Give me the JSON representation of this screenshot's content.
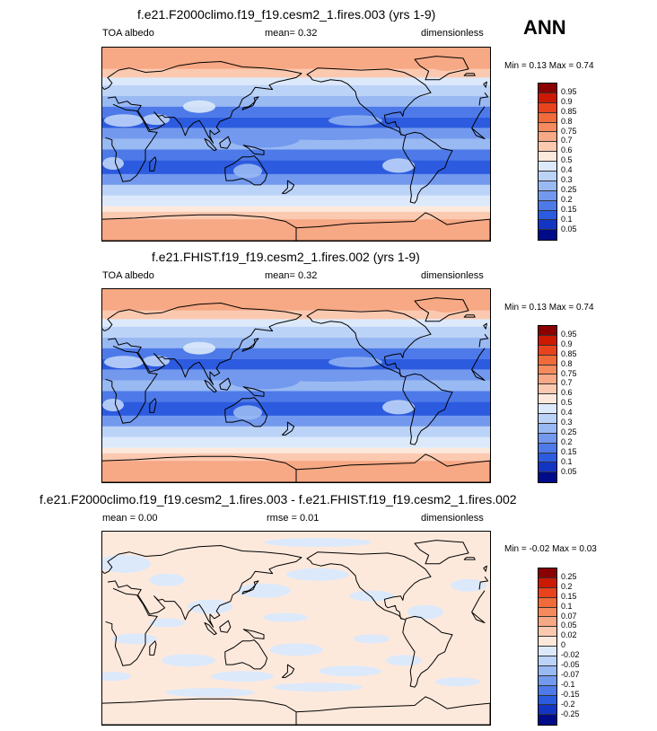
{
  "season": "ANN",
  "panels": [
    {
      "title": "f.e21.F2000climo.f19_f19.cesm2_1.fires.003 (yrs 1-9)",
      "left_label": "TOA albedo",
      "center_label": "mean=   0.32",
      "right_label": "dimensionless",
      "minmax": "Min =   0.13 Max =   0.74"
    },
    {
      "title": "f.e21.FHIST.f19_f19.cesm2_1.fires.002 (yrs 1-9)",
      "left_label": "TOA albedo",
      "center_label": "mean=   0.32",
      "right_label": "dimensionless",
      "minmax": "Min =   0.13 Max =   0.74"
    },
    {
      "title": "f.e21.F2000climo.f19_f19.cesm2_1.fires.003 - f.e21.FHIST.f19_f19.cesm2_1.fires.002",
      "left_label": "mean =   0.00",
      "center_label": "rmse =   0.01",
      "right_label": "dimensionless",
      "minmax": "Min =  -0.02 Max =   0.03"
    }
  ],
  "chart_data": [
    {
      "type": "heatmap",
      "title": "f.e21.F2000climo.f19_f19.cesm2_1.fires.003 (yrs 1-9)",
      "variable": "TOA albedo",
      "units": "dimensionless",
      "mean": 0.32,
      "min": 0.13,
      "max": 0.74,
      "colorbar_levels": [
        "0.95",
        "0.9",
        "0.85",
        "0.8",
        "0.75",
        "0.7",
        "0.6",
        "0.5",
        "0.4",
        "0.3",
        "0.25",
        "0.2",
        "0.15",
        "0.1",
        "0.05"
      ],
      "colorbar_colors": [
        "#8b0000",
        "#cc1a00",
        "#e8431c",
        "#f06a3a",
        "#f58a5c",
        "#f7a884",
        "#fbc9b0",
        "#fde9dc",
        "#dce9fb",
        "#bcd3f8",
        "#99b9f3",
        "#7399ee",
        "#4d7ae8",
        "#2c5bdf",
        "#1335c4",
        "#000b8a"
      ]
    },
    {
      "type": "heatmap",
      "title": "f.e21.FHIST.f19_f19.cesm2_1.fires.002 (yrs 1-9)",
      "variable": "TOA albedo",
      "units": "dimensionless",
      "mean": 0.32,
      "min": 0.13,
      "max": 0.74,
      "colorbar_levels": [
        "0.95",
        "0.9",
        "0.85",
        "0.8",
        "0.75",
        "0.7",
        "0.6",
        "0.5",
        "0.4",
        "0.3",
        "0.25",
        "0.2",
        "0.15",
        "0.1",
        "0.05"
      ],
      "colorbar_colors": [
        "#8b0000",
        "#cc1a00",
        "#e8431c",
        "#f06a3a",
        "#f58a5c",
        "#f7a884",
        "#fbc9b0",
        "#fde9dc",
        "#dce9fb",
        "#bcd3f8",
        "#99b9f3",
        "#7399ee",
        "#4d7ae8",
        "#2c5bdf",
        "#1335c4",
        "#000b8a"
      ]
    },
    {
      "type": "heatmap",
      "title": "f.e21.F2000climo.f19_f19.cesm2_1.fires.003 - f.e21.FHIST.f19_f19.cesm2_1.fires.002",
      "units": "dimensionless",
      "mean": 0.0,
      "rmse": 0.01,
      "min": -0.02,
      "max": 0.03,
      "colorbar_levels": [
        "0.25",
        "0.2",
        "0.15",
        "0.1",
        "0.07",
        "0.05",
        "0.02",
        "0",
        "-0.02",
        "-0.05",
        "-0.07",
        "-0.1",
        "-0.15",
        "-0.2",
        "-0.25"
      ],
      "colorbar_colors": [
        "#8b0000",
        "#cc1a00",
        "#e8431c",
        "#f06a3a",
        "#f58a5c",
        "#f7a884",
        "#fbc9b0",
        "#fde9dc",
        "#dce9fb",
        "#bcd3f8",
        "#99b9f3",
        "#7399ee",
        "#4d7ae8",
        "#2c5bdf",
        "#1335c4",
        "#000b8a"
      ]
    }
  ]
}
